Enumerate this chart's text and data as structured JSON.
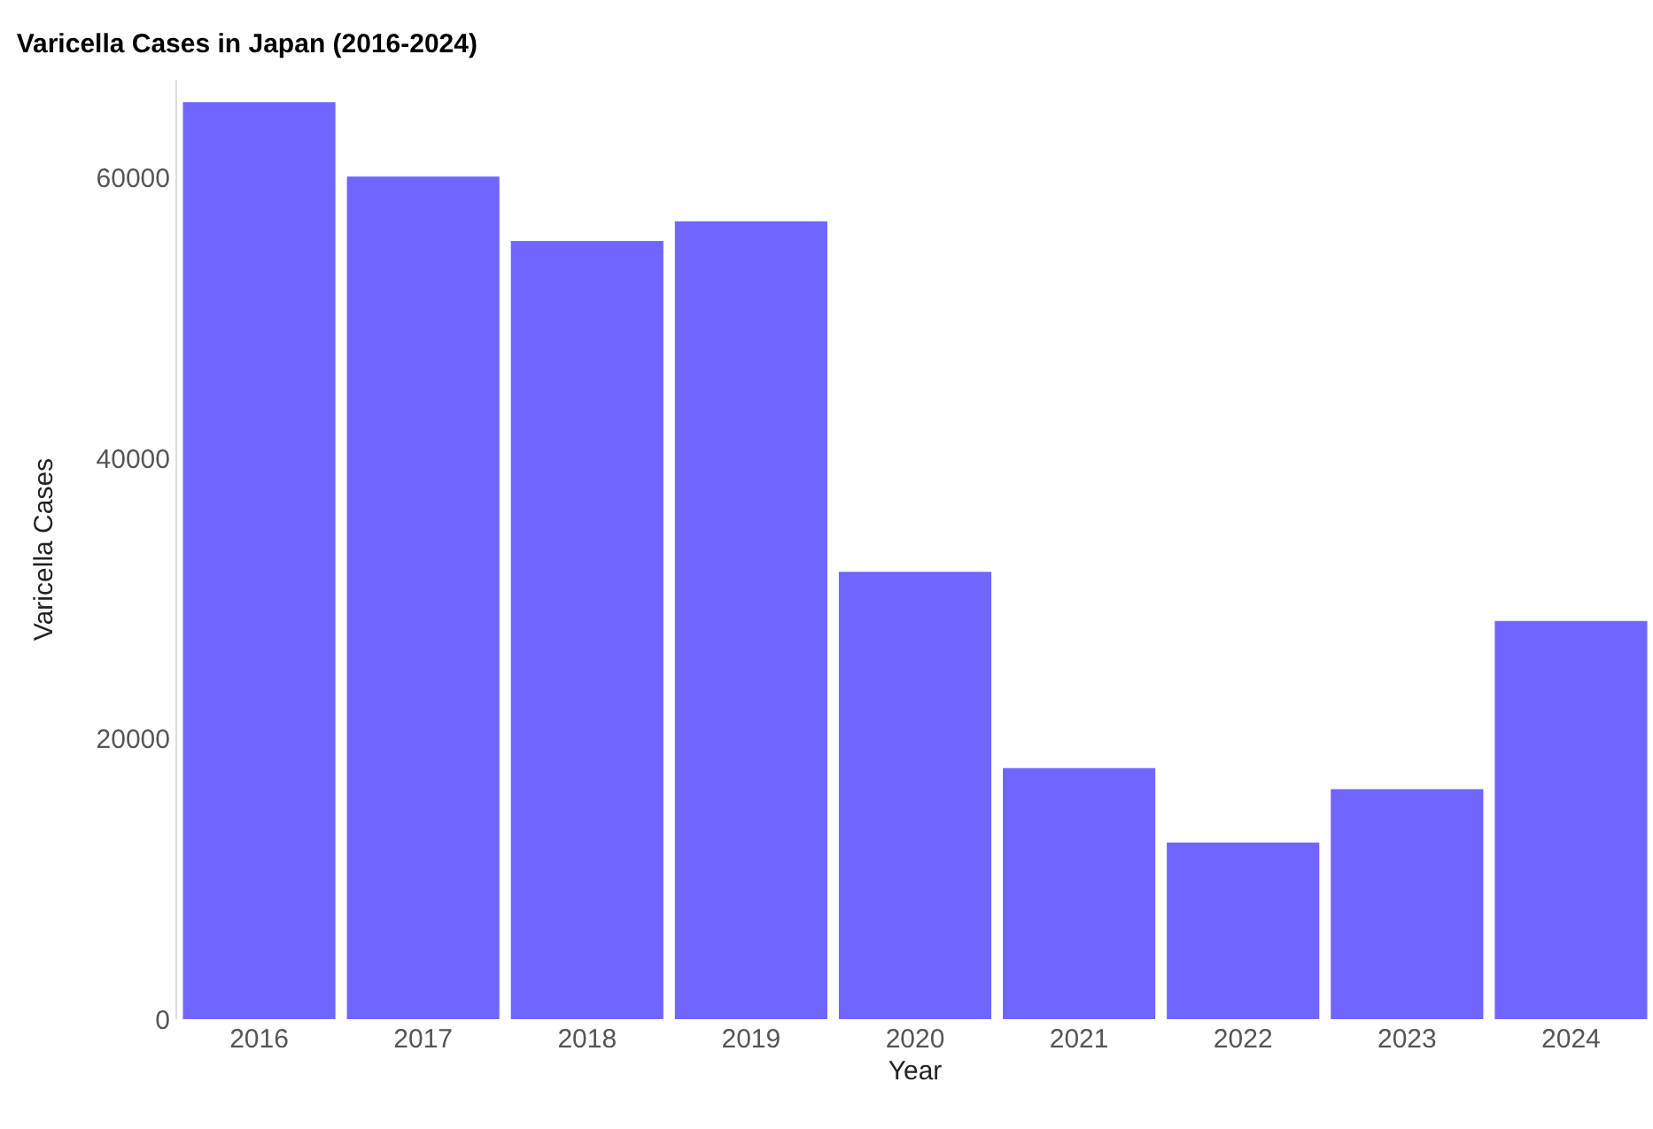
{
  "chart_data": {
    "type": "bar",
    "title": "Varicella Cases in Japan (2016-2024)",
    "xlabel": "Year",
    "ylabel": "Varicella Cases",
    "categories": [
      "2016",
      "2017",
      "2018",
      "2019",
      "2020",
      "2021",
      "2022",
      "2023",
      "2024"
    ],
    "values": [
      65400,
      60100,
      55500,
      56900,
      31900,
      17900,
      12600,
      16400,
      28400
    ],
    "color": "#7066ff",
    "ylim": [
      0,
      67000
    ],
    "yticks": [
      0,
      20000,
      40000,
      60000
    ],
    "grid": false
  }
}
